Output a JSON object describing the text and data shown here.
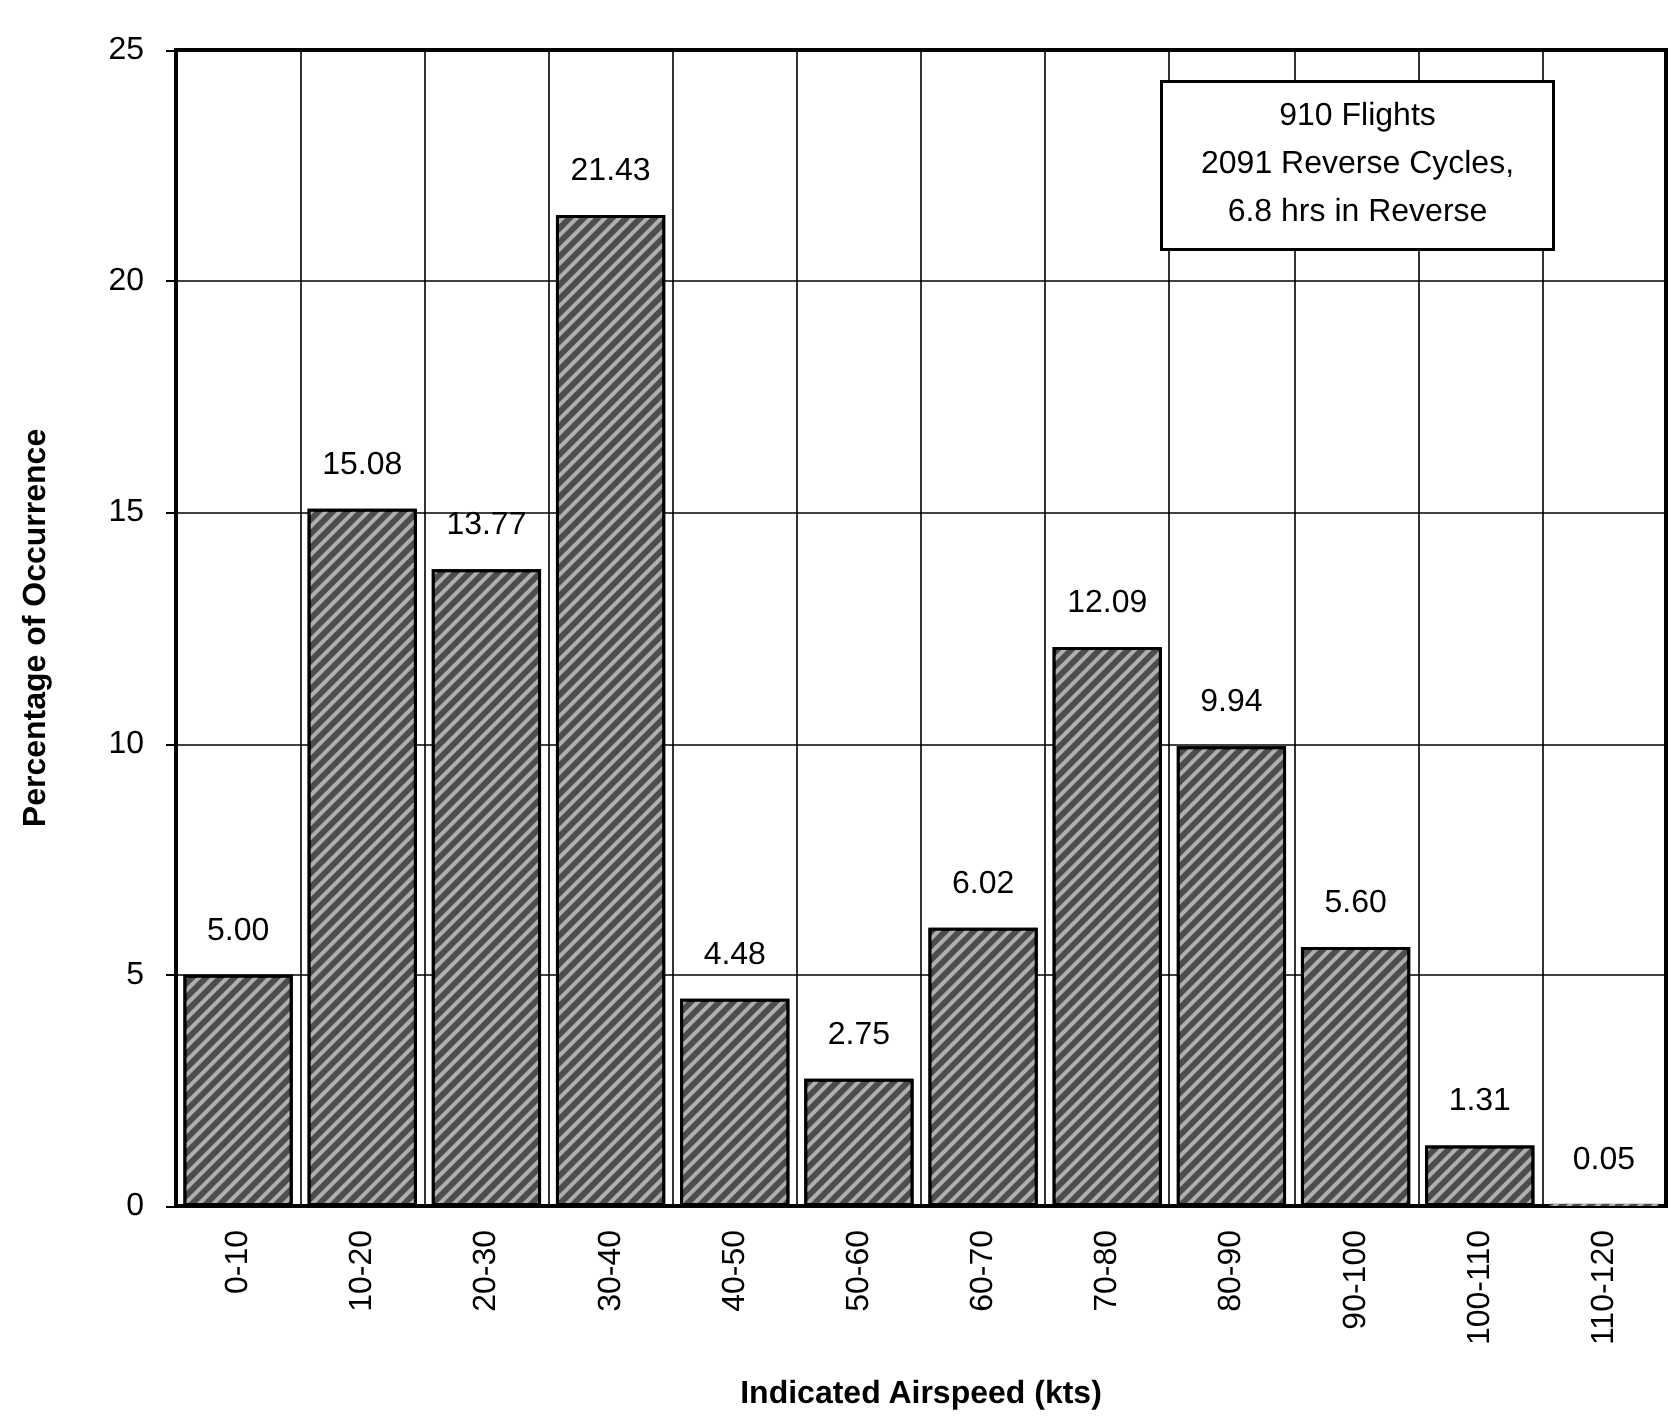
{
  "chart_data": {
    "type": "bar",
    "categories": [
      "0-10",
      "10-20",
      "20-30",
      "30-40",
      "40-50",
      "50-60",
      "60-70",
      "70-80",
      "80-90",
      "90-100",
      "100-110",
      "110-120"
    ],
    "values": [
      5.0,
      15.08,
      13.77,
      21.43,
      4.48,
      2.75,
      6.02,
      12.09,
      9.94,
      5.6,
      1.31,
      0.05
    ],
    "value_labels": [
      "5.00",
      "15.08",
      "13.77",
      "21.43",
      "4.48",
      "2.75",
      "6.02",
      "12.09",
      "9.94",
      "5.60",
      "1.31",
      "0.05"
    ],
    "color": "#4d4d4d",
    "xlabel": "Indicated Airspeed (kts)",
    "ylabel": "Percentage of Occurrence",
    "ylim": [
      0,
      25
    ],
    "yticks": [
      0,
      5,
      10,
      15,
      20,
      25
    ],
    "grid": true,
    "annotations": [
      "910 Flights\n2091 Reverse Cycles,\n6.8 hrs in Reverse"
    ]
  }
}
